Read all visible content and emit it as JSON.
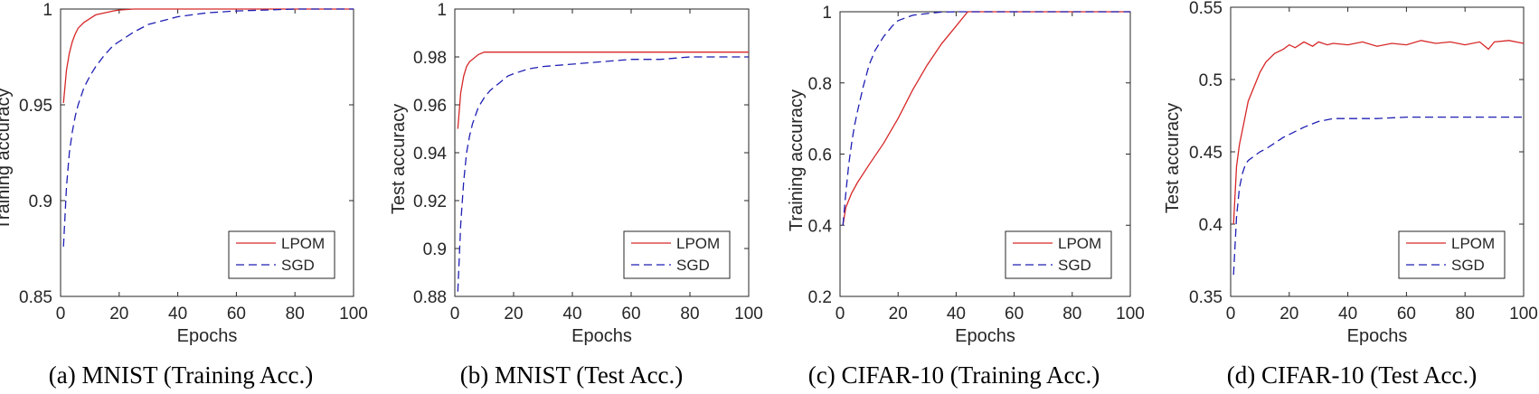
{
  "colors": {
    "lpom": "#d62728",
    "sgd": "#1f1fb4",
    "axis": "#262626",
    "background": "#ffffff"
  },
  "chart_data": [
    {
      "type": "line",
      "caption": "(a) MNIST (Training Acc.)",
      "xlabel": "Epochs",
      "ylabel": "Training accuracy",
      "xlim": [
        0,
        100
      ],
      "ylim": [
        0.85,
        1
      ],
      "xticks": [
        0,
        20,
        40,
        60,
        80,
        100
      ],
      "yticks": [
        0.85,
        0.9,
        0.95,
        1
      ],
      "ytick_labels": [
        "0.85",
        "0.9",
        "0.95",
        "1"
      ],
      "legend_position": "bottom-right",
      "series": [
        {
          "name": "LPOM",
          "style": "solid",
          "x": [
            1,
            2,
            3,
            4,
            5,
            6,
            8,
            10,
            12,
            15,
            18,
            20,
            25,
            30,
            40,
            50,
            60,
            70,
            80,
            90,
            100
          ],
          "y": [
            0.951,
            0.968,
            0.977,
            0.983,
            0.987,
            0.99,
            0.993,
            0.995,
            0.997,
            0.998,
            0.999,
            0.9995,
            1.0,
            1.0,
            1.0,
            1.0,
            1.0,
            1.0,
            1.0,
            1.0,
            1.0
          ]
        },
        {
          "name": "SGD",
          "style": "dashed",
          "x": [
            1,
            2,
            3,
            4,
            5,
            6,
            8,
            10,
            12,
            15,
            18,
            20,
            25,
            30,
            40,
            50,
            60,
            70,
            80,
            90,
            100
          ],
          "y": [
            0.876,
            0.907,
            0.925,
            0.936,
            0.944,
            0.95,
            0.959,
            0.965,
            0.97,
            0.976,
            0.981,
            0.983,
            0.988,
            0.992,
            0.996,
            0.998,
            0.999,
            0.9995,
            1.0,
            1.0,
            1.0
          ]
        }
      ]
    },
    {
      "type": "line",
      "caption": "(b) MNIST (Test Acc.)",
      "xlabel": "Epochs",
      "ylabel": "Test accuracy",
      "xlim": [
        0,
        100
      ],
      "ylim": [
        0.88,
        1
      ],
      "xticks": [
        0,
        20,
        40,
        60,
        80,
        100
      ],
      "yticks": [
        0.88,
        0.9,
        0.92,
        0.94,
        0.96,
        0.98,
        1
      ],
      "ytick_labels": [
        "0.88",
        "0.9",
        "0.92",
        "0.94",
        "0.96",
        "0.98",
        "1"
      ],
      "legend_position": "bottom-right",
      "series": [
        {
          "name": "LPOM",
          "style": "solid",
          "x": [
            1,
            2,
            3,
            4,
            5,
            6,
            8,
            10,
            12,
            15,
            20,
            30,
            40,
            50,
            60,
            70,
            80,
            90,
            100
          ],
          "y": [
            0.95,
            0.965,
            0.972,
            0.976,
            0.978,
            0.979,
            0.981,
            0.982,
            0.982,
            0.982,
            0.982,
            0.982,
            0.982,
            0.982,
            0.982,
            0.982,
            0.982,
            0.982,
            0.982
          ]
        },
        {
          "name": "SGD",
          "style": "dashed",
          "x": [
            1,
            2,
            3,
            4,
            5,
            6,
            8,
            10,
            12,
            15,
            18,
            20,
            25,
            30,
            40,
            50,
            60,
            70,
            80,
            90,
            100
          ],
          "y": [
            0.882,
            0.91,
            0.928,
            0.94,
            0.947,
            0.952,
            0.959,
            0.963,
            0.966,
            0.969,
            0.972,
            0.973,
            0.975,
            0.976,
            0.977,
            0.978,
            0.979,
            0.979,
            0.98,
            0.98,
            0.98
          ]
        }
      ]
    },
    {
      "type": "line",
      "caption": "(c) CIFAR-10 (Training Acc.)",
      "xlabel": "Epochs",
      "ylabel": "Training accuracy",
      "xlim": [
        0,
        100
      ],
      "ylim": [
        0.2,
        1
      ],
      "xticks": [
        0,
        20,
        40,
        60,
        80,
        100
      ],
      "yticks": [
        0.2,
        0.4,
        0.6,
        0.8,
        1
      ],
      "ytick_labels": [
        "0.2",
        "0.4",
        "0.6",
        "0.8",
        "1"
      ],
      "legend_position": "bottom-right",
      "series": [
        {
          "name": "LPOM",
          "style": "solid",
          "x": [
            1,
            2,
            4,
            6,
            10,
            15,
            20,
            25,
            30,
            35,
            40,
            44,
            46,
            50,
            60,
            80,
            100
          ],
          "y": [
            0.4,
            0.45,
            0.49,
            0.52,
            0.57,
            0.63,
            0.7,
            0.78,
            0.85,
            0.91,
            0.96,
            1.0,
            1.0,
            1.0,
            1.0,
            1.0,
            1.0
          ]
        },
        {
          "name": "SGD",
          "style": "dashed",
          "x": [
            1,
            2,
            3,
            4,
            5,
            6,
            8,
            10,
            12,
            15,
            18,
            20,
            25,
            30,
            35,
            40,
            50,
            60,
            80,
            100
          ],
          "y": [
            0.4,
            0.49,
            0.57,
            0.63,
            0.68,
            0.72,
            0.79,
            0.85,
            0.89,
            0.93,
            0.96,
            0.975,
            0.99,
            0.995,
            0.999,
            1.0,
            1.0,
            1.0,
            1.0,
            1.0
          ]
        }
      ]
    },
    {
      "type": "line",
      "caption": "(d) CIFAR-10 (Test Acc.)",
      "xlabel": "Epochs",
      "ylabel": "Test accuracy",
      "xlim": [
        0,
        100
      ],
      "ylim": [
        0.35,
        0.55
      ],
      "xticks": [
        0,
        20,
        40,
        60,
        80,
        100
      ],
      "yticks": [
        0.35,
        0.4,
        0.45,
        0.5,
        0.55
      ],
      "ytick_labels": [
        "0.35",
        "0.4",
        "0.45",
        "0.5",
        "0.55"
      ],
      "legend_position": "bottom-right",
      "series": [
        {
          "name": "LPOM",
          "style": "solid",
          "x": [
            1,
            2,
            3,
            4,
            5,
            6,
            8,
            10,
            12,
            15,
            18,
            20,
            22,
            25,
            28,
            30,
            33,
            35,
            40,
            45,
            50,
            55,
            60,
            65,
            70,
            75,
            80,
            85,
            88,
            90,
            95,
            100
          ],
          "y": [
            0.4,
            0.44,
            0.455,
            0.465,
            0.475,
            0.485,
            0.495,
            0.505,
            0.512,
            0.518,
            0.521,
            0.524,
            0.522,
            0.526,
            0.523,
            0.526,
            0.524,
            0.525,
            0.524,
            0.526,
            0.523,
            0.525,
            0.524,
            0.527,
            0.525,
            0.526,
            0.524,
            0.526,
            0.521,
            0.526,
            0.527,
            0.525
          ]
        },
        {
          "name": "SGD",
          "style": "dashed",
          "x": [
            1,
            2,
            3,
            4,
            5,
            6,
            8,
            10,
            12,
            15,
            18,
            20,
            25,
            30,
            35,
            40,
            50,
            60,
            70,
            80,
            90,
            100
          ],
          "y": [
            0.365,
            0.405,
            0.425,
            0.435,
            0.441,
            0.444,
            0.447,
            0.45,
            0.452,
            0.456,
            0.46,
            0.462,
            0.467,
            0.471,
            0.473,
            0.473,
            0.473,
            0.474,
            0.474,
            0.474,
            0.474,
            0.474
          ]
        }
      ]
    }
  ]
}
